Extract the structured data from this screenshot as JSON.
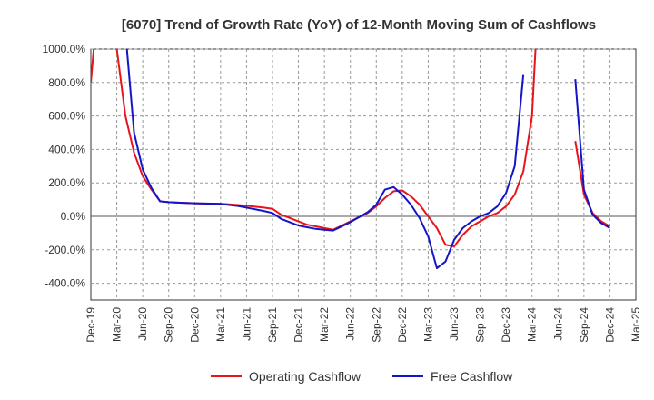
{
  "chart_data": {
    "type": "line",
    "title": "[6070]  Trend of Growth Rate (YoY) of 12-Month Moving Sum of Cashflows",
    "xlabel": "",
    "ylabel": "",
    "ylim": [
      -500,
      1000
    ],
    "y_ticks": [
      {
        "value": 1000,
        "label": "1000.0%"
      },
      {
        "value": 800,
        "label": "800.0%"
      },
      {
        "value": 600,
        "label": "600.0%"
      },
      {
        "value": 400,
        "label": "400.0%"
      },
      {
        "value": 200,
        "label": "200.0%"
      },
      {
        "value": 0,
        "label": "0.0%"
      },
      {
        "value": -200,
        "label": "-200.0%"
      },
      {
        "value": -400,
        "label": "-400.0%"
      }
    ],
    "x_ticks": [
      "Dec-19",
      "Mar-20",
      "Jun-20",
      "Sep-20",
      "Dec-20",
      "Mar-21",
      "Jun-21",
      "Sep-21",
      "Dec-21",
      "Mar-22",
      "Jun-22",
      "Sep-22",
      "Dec-22",
      "Mar-23",
      "Jun-23",
      "Sep-23",
      "Dec-23",
      "Mar-24",
      "Jun-24",
      "Sep-24",
      "Dec-24",
      "Mar-25"
    ],
    "x": [
      "Dec-19",
      "Jan-20",
      "Feb-20",
      "Mar-20",
      "Apr-20",
      "May-20",
      "Jun-20",
      "Jul-20",
      "Aug-20",
      "Sep-20",
      "Oct-20",
      "Nov-20",
      "Dec-20",
      "Jan-21",
      "Feb-21",
      "Mar-21",
      "Apr-21",
      "May-21",
      "Jun-21",
      "Jul-21",
      "Aug-21",
      "Sep-21",
      "Oct-21",
      "Nov-21",
      "Dec-21",
      "Jan-22",
      "Feb-22",
      "Mar-22",
      "Apr-22",
      "May-22",
      "Jun-22",
      "Jul-22",
      "Aug-22",
      "Sep-22",
      "Oct-22",
      "Nov-22",
      "Dec-22",
      "Jan-23",
      "Feb-23",
      "Mar-23",
      "Apr-23",
      "May-23",
      "Jun-23",
      "Jul-23",
      "Aug-23",
      "Sep-23",
      "Oct-23",
      "Nov-23",
      "Dec-23",
      "Jan-24",
      "Feb-24",
      "Mar-24",
      "Apr-24",
      "May-24",
      "Jun-24",
      "Jul-24",
      "Aug-24",
      "Sep-24",
      "Oct-24",
      "Nov-24",
      "Dec-24",
      "Jan-25",
      "Feb-25",
      "Mar-25"
    ],
    "series": [
      {
        "name": "Operating Cashflow",
        "color": "#e8141c",
        "values": [
          800,
          1400,
          1300,
          1000,
          600,
          380,
          240,
          160,
          90,
          85,
          82,
          80,
          78,
          77,
          76,
          75,
          72,
          68,
          63,
          58,
          52,
          45,
          10,
          -10,
          -30,
          -50,
          -60,
          -70,
          -80,
          -55,
          -30,
          -5,
          20,
          60,
          110,
          150,
          155,
          120,
          70,
          0,
          -70,
          -170,
          -180,
          -110,
          -60,
          -30,
          0,
          20,
          60,
          130,
          270,
          600,
          1600,
          null,
          null,
          null,
          450,
          130,
          20,
          -30,
          -60,
          null,
          null,
          null
        ]
      },
      {
        "name": "Free Cashflow",
        "color": "#1414c8",
        "values": [
          null,
          null,
          null,
          null,
          1100,
          500,
          280,
          170,
          90,
          85,
          82,
          80,
          78,
          77,
          76,
          75,
          68,
          62,
          52,
          42,
          32,
          20,
          -15,
          -35,
          -55,
          -65,
          -75,
          -80,
          -85,
          -60,
          -35,
          -5,
          25,
          70,
          160,
          175,
          130,
          70,
          -10,
          -120,
          -310,
          -270,
          -140,
          -70,
          -30,
          0,
          20,
          60,
          140,
          300,
          850,
          null,
          null,
          null,
          null,
          null,
          820,
          160,
          10,
          -40,
          -70,
          null,
          null,
          null
        ]
      }
    ],
    "grid": "dashed",
    "legend_position": "bottom"
  }
}
